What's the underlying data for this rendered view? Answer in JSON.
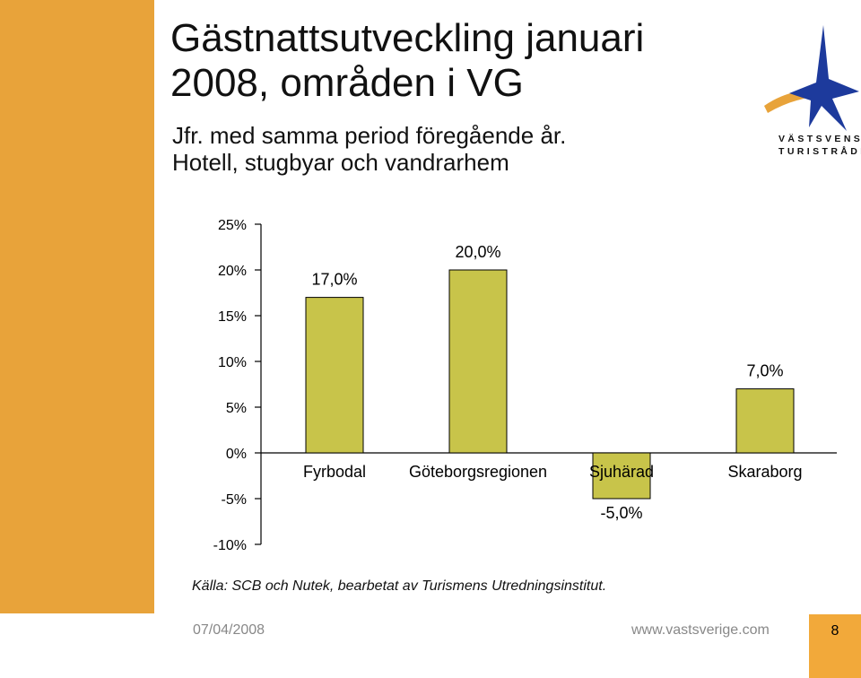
{
  "slide": {
    "title_line1": "Gästnattsutveckling januari",
    "title_line2": "2008, områden i VG",
    "subtitle_line1": "Jfr. med samma period föregående år.",
    "subtitle_line2": "Hotell, stugbyar och vandrarhem",
    "source": "Källa: SCB och Nutek, bearbetat av Turismens Utredningsinstitut.",
    "date": "07/04/2008",
    "url": "www.vastsverige.com",
    "page_number": "8"
  },
  "logo": {
    "line1": "VÄSTSVENSKA",
    "line2": "TURISTRÅDET",
    "icon": "star-logo-icon",
    "colors": {
      "star": "#1d3a9c",
      "swoosh": "#e8a33a"
    }
  },
  "colors": {
    "bar": "#c8c44a",
    "accent_band": "#e8a33a",
    "page_box": "#f2a93a"
  },
  "chart_data": {
    "type": "bar",
    "categories": [
      "Fyrbodal",
      "Göteborgsregionen",
      "Sjuhärad",
      "Skaraborg"
    ],
    "values": [
      17.0,
      20.0,
      -5.0,
      7.0
    ],
    "data_labels": [
      "17,0%",
      "20,0%",
      "-5,0%",
      "7,0%"
    ],
    "yticks": [
      "25%",
      "20%",
      "15%",
      "10%",
      "5%",
      "0%",
      "-5%",
      "-10%"
    ],
    "ytick_values": [
      25,
      20,
      15,
      10,
      5,
      0,
      -5,
      -10
    ],
    "ylim": [
      -10,
      25
    ],
    "grid": false,
    "legend": "none"
  }
}
